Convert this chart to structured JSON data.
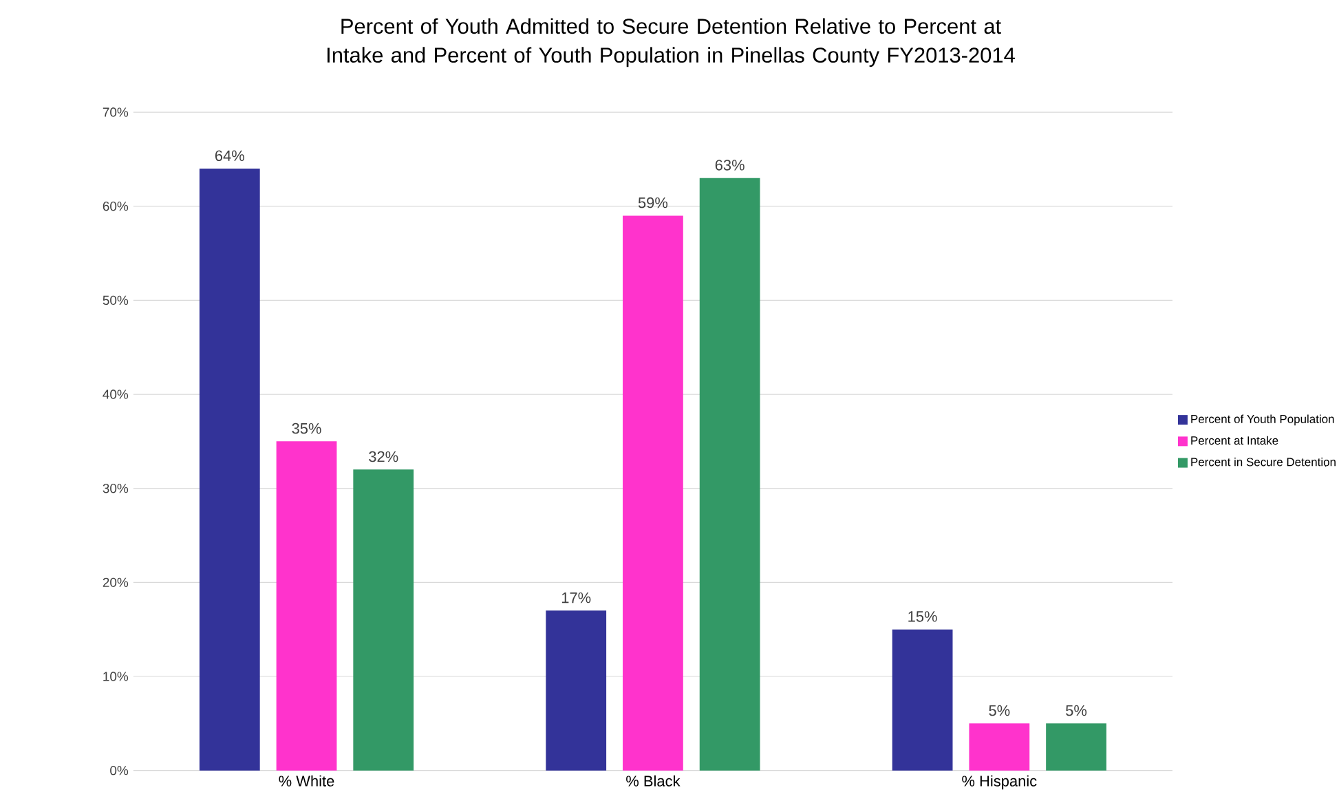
{
  "chart_data": {
    "type": "bar",
    "title": "Percent of Youth Admitted to Secure Detention Relative to Percent at Intake and Percent of Youth Population in Pinellas County FY2013-2014",
    "categories": [
      "% White",
      "% Black",
      "% Hispanic"
    ],
    "series": [
      {
        "name": "Percent of Youth Population",
        "color": "#333399",
        "values": [
          64,
          17,
          15
        ],
        "value_labels": [
          "64%",
          "17%",
          "15%"
        ]
      },
      {
        "name": "Percent at Intake",
        "color": "#ff33cc",
        "values": [
          35,
          59,
          5
        ],
        "value_labels": [
          "35%",
          "59%",
          "5%"
        ]
      },
      {
        "name": "Percent in Secure Detention",
        "color": "#339966",
        "values": [
          32,
          63,
          5
        ],
        "value_labels": [
          "32%",
          "63%",
          "5%"
        ]
      }
    ],
    "ylim": [
      0,
      70
    ],
    "yticks": [
      {
        "value": 0,
        "label": "0%"
      },
      {
        "value": 10,
        "label": "10%"
      },
      {
        "value": 20,
        "label": "20%"
      },
      {
        "value": 30,
        "label": "30%"
      },
      {
        "value": 40,
        "label": "40%"
      },
      {
        "value": 50,
        "label": "50%"
      },
      {
        "value": 60,
        "label": "60%"
      },
      {
        "value": 70,
        "label": "70%"
      }
    ],
    "grid": "y",
    "legend": "right"
  }
}
